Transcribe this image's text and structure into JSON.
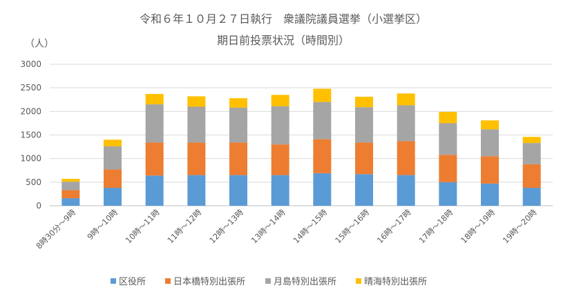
{
  "chart_data": {
    "type": "bar",
    "stacked": true,
    "title": "令和６年１０月２７日執行　衆議院議員選挙（小選挙区）",
    "subtitle": "期日前投票状況（時間別）",
    "ylabel": "（人）",
    "xlabel": "",
    "ylim": [
      0,
      3000
    ],
    "yticks": [
      0,
      500,
      1000,
      1500,
      2000,
      2500,
      3000
    ],
    "grid": true,
    "legend_position": "bottom",
    "categories": [
      "8時30分～9時",
      "9時～10時",
      "10時～11時",
      "11時～12時",
      "12時～13時",
      "13時～14時",
      "14時～15時",
      "15時～16時",
      "16時～17時",
      "17時～18時",
      "18時～19時",
      "19時～20時"
    ],
    "series": [
      {
        "name": "区役所",
        "color": "#5b9bd5",
        "values": [
          160,
          380,
          640,
          650,
          650,
          650,
          690,
          670,
          650,
          500,
          470,
          380
        ]
      },
      {
        "name": "日本橋特別出張所",
        "color": "#ed7d31",
        "values": [
          170,
          390,
          700,
          690,
          690,
          650,
          720,
          670,
          720,
          580,
          580,
          500
        ]
      },
      {
        "name": "月島特別出張所",
        "color": "#a5a5a5",
        "values": [
          180,
          490,
          810,
          760,
          740,
          810,
          790,
          750,
          760,
          670,
          570,
          450
        ]
      },
      {
        "name": "晴海特別出張所",
        "color": "#ffc000",
        "values": [
          60,
          140,
          220,
          220,
          200,
          240,
          280,
          220,
          250,
          240,
          190,
          130
        ]
      }
    ]
  }
}
